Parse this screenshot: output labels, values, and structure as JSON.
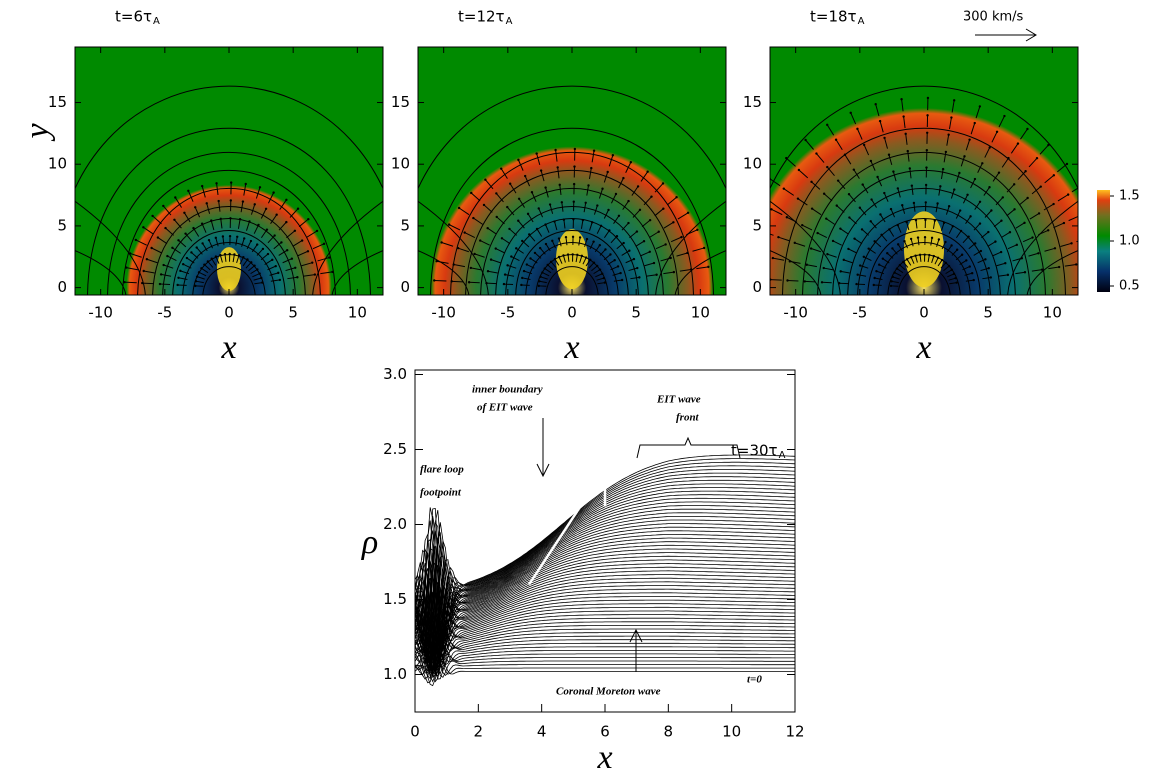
{
  "chart_data": [
    {
      "type": "heatmap",
      "title": "t=6τ",
      "title_sub": "A",
      "xlabel": "x",
      "ylabel": "y",
      "xlim": [
        -12,
        12
      ],
      "ylim": [
        -0.6,
        19.5
      ],
      "xticks": [
        -10,
        -5,
        0,
        5,
        10
      ],
      "yticks": [
        0,
        5,
        10,
        15
      ]
    },
    {
      "type": "heatmap",
      "title": "t=12τ",
      "title_sub": "A",
      "xlabel": "x",
      "xlim": [
        -12,
        12
      ],
      "ylim": [
        -0.6,
        19.5
      ],
      "xticks": [
        -10,
        -5,
        0,
        5,
        10
      ],
      "yticks": [
        0,
        5,
        10,
        15
      ]
    },
    {
      "type": "heatmap",
      "title": "t=18τ",
      "title_sub": "A",
      "xlabel": "x",
      "annotation": "300 km/s",
      "xlim": [
        -12,
        12
      ],
      "ylim": [
        -0.6,
        19.5
      ],
      "xticks": [
        -10,
        -5,
        0,
        5,
        10
      ],
      "yticks": [
        0,
        5,
        10,
        15
      ],
      "colorbar": {
        "range": [
          0.5,
          1.5
        ],
        "ticks": [
          {
            "value": 1.5,
            "label": "1.5"
          },
          {
            "value": 1,
            "label": "1.0"
          },
          {
            "value": 0.5,
            "label": "0.5"
          }
        ]
      }
    },
    {
      "type": "line",
      "xlabel": "x",
      "ylabel": "ρ",
      "xlim": [
        0,
        12
      ],
      "ylim": [
        0.75,
        3.03
      ],
      "xticks": [
        0,
        2,
        4,
        6,
        8,
        10,
        12
      ],
      "yticks": [
        {
          "value": 1,
          "label": "1.0"
        },
        {
          "value": 1.5,
          "label": "1.5"
        },
        {
          "value": 2,
          "label": "2.0"
        },
        {
          "value": 2.5,
          "label": "2.5"
        },
        {
          "value": 3,
          "label": "3.0"
        }
      ],
      "annotations": [
        {
          "text": "inner boundary"
        },
        {
          "text": "of EIT wave"
        },
        {
          "text": "EIT wave"
        },
        {
          "text": "front"
        },
        {
          "text": "flare loop"
        },
        {
          "text": "footpoint"
        },
        {
          "text": "t=30τ",
          "sub": "A"
        },
        {
          "text": "t=0"
        },
        {
          "text": "Coronal Moreton wave"
        }
      ]
    }
  ]
}
